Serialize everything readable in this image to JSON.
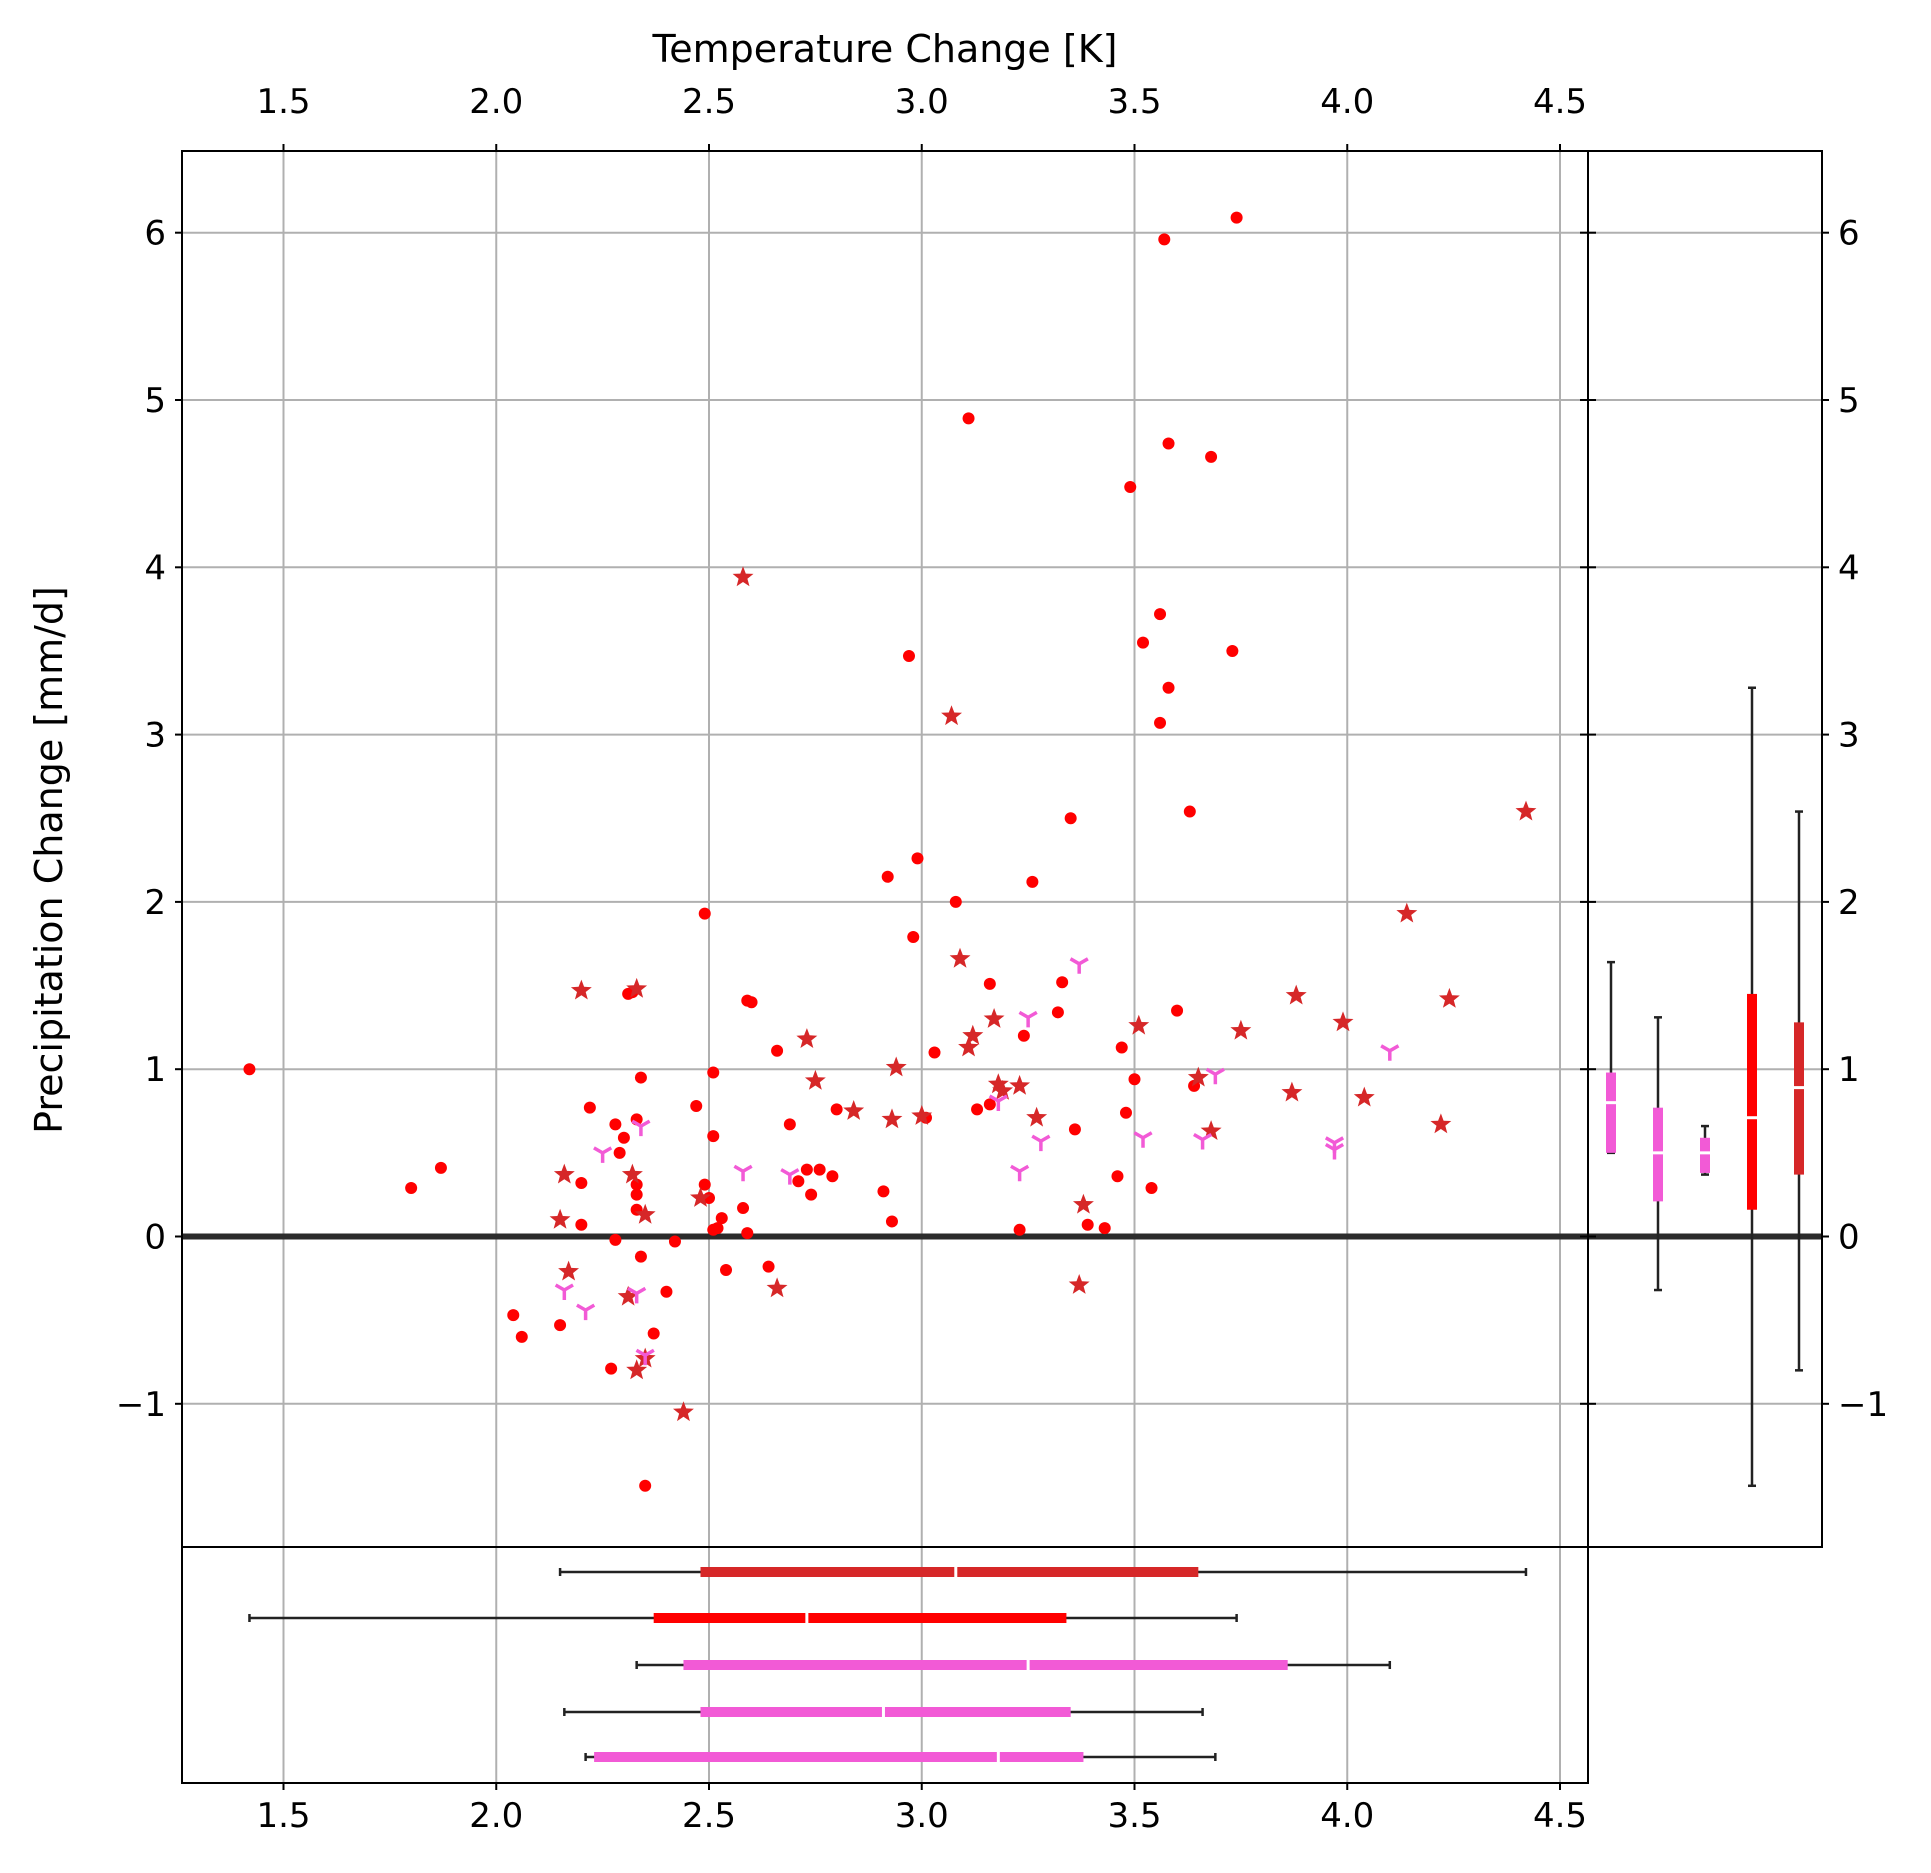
{
  "chart_data": {
    "type": "scatter",
    "xlabel": "Temperature Change [K]",
    "ylabel": "Precipitation Change [mm/d]",
    "xlim": [
      1.26,
      4.57
    ],
    "ylim": [
      -1.86,
      6.49
    ],
    "xticks": [
      "1.5",
      "2.0",
      "2.5",
      "3.0",
      "3.5",
      "4.0",
      "4.5"
    ],
    "xtick_values": [
      1.5,
      2.0,
      2.5,
      3.0,
      3.5,
      4.0,
      4.5
    ],
    "yticks": [
      "−1",
      "0",
      "1",
      "2",
      "3",
      "4",
      "5",
      "6"
    ],
    "ytick_values": [
      -1,
      0,
      1,
      2,
      3,
      4,
      5,
      6
    ],
    "grid": true,
    "colors": {
      "dots": "#ff0000",
      "stars": "#d62728",
      "tri": "#f25ad6",
      "zero": "#2b2b2b",
      "grid": "#b0b0b0"
    },
    "series": [
      {
        "name": "dots",
        "marker": "circle",
        "color": "#ff0000",
        "points": [
          [
            1.42,
            1.0
          ],
          [
            1.8,
            0.29
          ],
          [
            1.87,
            0.41
          ],
          [
            2.04,
            -0.47
          ],
          [
            2.06,
            -0.6
          ],
          [
            2.15,
            -0.53
          ],
          [
            2.2,
            0.32
          ],
          [
            2.2,
            0.07
          ],
          [
            2.22,
            0.77
          ],
          [
            2.27,
            -0.79
          ],
          [
            2.28,
            0.67
          ],
          [
            2.28,
            -0.02
          ],
          [
            2.29,
            0.5
          ],
          [
            2.3,
            0.59
          ],
          [
            2.31,
            1.45
          ],
          [
            2.32,
            1.46
          ],
          [
            2.33,
            0.7
          ],
          [
            2.33,
            0.25
          ],
          [
            2.33,
            0.16
          ],
          [
            2.33,
            0.31
          ],
          [
            2.34,
            0.95
          ],
          [
            2.34,
            -0.12
          ],
          [
            2.35,
            -1.49
          ],
          [
            2.37,
            -0.58
          ],
          [
            2.4,
            -0.33
          ],
          [
            2.42,
            -0.03
          ],
          [
            2.47,
            0.78
          ],
          [
            2.49,
            1.93
          ],
          [
            2.49,
            0.31
          ],
          [
            2.5,
            0.23
          ],
          [
            2.51,
            0.04
          ],
          [
            2.51,
            0.98
          ],
          [
            2.51,
            0.6
          ],
          [
            2.52,
            0.05
          ],
          [
            2.53,
            0.11
          ],
          [
            2.54,
            -0.2
          ],
          [
            2.58,
            0.17
          ],
          [
            2.59,
            1.41
          ],
          [
            2.6,
            1.4
          ],
          [
            2.59,
            0.02
          ],
          [
            2.64,
            -0.18
          ],
          [
            2.66,
            1.11
          ],
          [
            2.69,
            0.67
          ],
          [
            2.71,
            0.33
          ],
          [
            2.73,
            0.4
          ],
          [
            2.74,
            0.25
          ],
          [
            2.76,
            0.4
          ],
          [
            2.79,
            0.36
          ],
          [
            2.8,
            0.76
          ],
          [
            2.91,
            0.27
          ],
          [
            2.92,
            2.15
          ],
          [
            2.93,
            0.09
          ],
          [
            2.97,
            3.47
          ],
          [
            2.98,
            1.79
          ],
          [
            2.99,
            2.26
          ],
          [
            3.01,
            0.71
          ],
          [
            3.03,
            1.1
          ],
          [
            3.08,
            2.0
          ],
          [
            3.11,
            4.89
          ],
          [
            3.13,
            0.76
          ],
          [
            3.16,
            0.79
          ],
          [
            3.16,
            1.51
          ],
          [
            3.23,
            0.04
          ],
          [
            3.24,
            1.2
          ],
          [
            3.26,
            2.12
          ],
          [
            3.32,
            1.34
          ],
          [
            3.33,
            1.52
          ],
          [
            3.35,
            2.5
          ],
          [
            3.36,
            0.64
          ],
          [
            3.39,
            0.07
          ],
          [
            3.43,
            0.05
          ],
          [
            3.46,
            0.36
          ],
          [
            3.47,
            1.13
          ],
          [
            3.48,
            0.74
          ],
          [
            3.49,
            4.48
          ],
          [
            3.5,
            0.94
          ],
          [
            3.52,
            3.55
          ],
          [
            3.54,
            0.29
          ],
          [
            3.56,
            3.72
          ],
          [
            3.56,
            3.07
          ],
          [
            3.57,
            5.96
          ],
          [
            3.58,
            4.74
          ],
          [
            3.58,
            3.28
          ],
          [
            3.6,
            1.35
          ],
          [
            3.63,
            2.54
          ],
          [
            3.64,
            0.9
          ],
          [
            3.68,
            4.66
          ],
          [
            3.73,
            3.5
          ],
          [
            3.74,
            6.09
          ]
        ]
      },
      {
        "name": "stars",
        "marker": "star",
        "color": "#d62728",
        "points": [
          [
            2.15,
            0.1
          ],
          [
            2.16,
            0.37
          ],
          [
            2.17,
            -0.21
          ],
          [
            2.2,
            1.47
          ],
          [
            2.31,
            -0.36
          ],
          [
            2.32,
            0.37
          ],
          [
            2.33,
            1.48
          ],
          [
            2.33,
            -0.8
          ],
          [
            2.35,
            -0.73
          ],
          [
            2.35,
            0.13
          ],
          [
            2.44,
            -1.05
          ],
          [
            2.48,
            0.23
          ],
          [
            2.58,
            3.94
          ],
          [
            2.66,
            -0.31
          ],
          [
            2.73,
            1.18
          ],
          [
            2.75,
            0.93
          ],
          [
            2.84,
            0.75
          ],
          [
            2.93,
            0.7
          ],
          [
            2.94,
            1.01
          ],
          [
            3.0,
            0.72
          ],
          [
            3.07,
            3.11
          ],
          [
            3.09,
            1.66
          ],
          [
            3.11,
            1.13
          ],
          [
            3.12,
            1.2
          ],
          [
            3.17,
            1.3
          ],
          [
            3.18,
            0.91
          ],
          [
            3.19,
            0.87
          ],
          [
            3.23,
            0.9
          ],
          [
            3.27,
            0.71
          ],
          [
            3.37,
            -0.29
          ],
          [
            3.38,
            0.19
          ],
          [
            3.51,
            1.26
          ],
          [
            3.65,
            0.95
          ],
          [
            3.68,
            0.63
          ],
          [
            3.75,
            1.23
          ],
          [
            3.87,
            0.86
          ],
          [
            3.88,
            1.44
          ],
          [
            3.99,
            1.28
          ],
          [
            4.04,
            0.83
          ],
          [
            4.14,
            1.93
          ],
          [
            4.22,
            0.67
          ],
          [
            4.24,
            1.42
          ],
          [
            4.42,
            2.54
          ]
        ]
      },
      {
        "name": "tri",
        "marker": "tri_down",
        "color": "#f25ad6",
        "points": [
          [
            2.16,
            -0.32
          ],
          [
            2.21,
            -0.44
          ],
          [
            2.25,
            0.5
          ],
          [
            2.33,
            -0.34
          ],
          [
            2.34,
            0.66
          ],
          [
            2.35,
            -0.71
          ],
          [
            2.58,
            0.39
          ],
          [
            2.69,
            0.37
          ],
          [
            3.18,
            0.81
          ],
          [
            3.23,
            0.39
          ],
          [
            3.25,
            1.31
          ],
          [
            3.28,
            0.57
          ],
          [
            3.37,
            1.63
          ],
          [
            3.52,
            0.59
          ],
          [
            3.66,
            0.58
          ],
          [
            3.69,
            0.97
          ],
          [
            3.97,
            0.56
          ],
          [
            3.97,
            0.52
          ],
          [
            4.1,
            1.11
          ]
        ]
      }
    ],
    "x_boxplots": [
      {
        "color": "#d62728",
        "whisker": [
          2.15,
          4.42
        ],
        "box": [
          2.48,
          3.65
        ],
        "median": 3.08
      },
      {
        "color": "#ff0000",
        "whisker": [
          1.42,
          3.74
        ],
        "box": [
          2.37,
          3.34
        ],
        "median": 2.73
      },
      {
        "color": "#f25ad6",
        "whisker": [
          2.33,
          4.1
        ],
        "box": [
          2.44,
          3.86
        ],
        "median": 3.25
      },
      {
        "color": "#f25ad6",
        "whisker": [
          2.16,
          3.66
        ],
        "box": [
          2.48,
          3.35
        ],
        "median": 2.91
      },
      {
        "color": "#f25ad6",
        "whisker": [
          2.21,
          3.69
        ],
        "box": [
          2.23,
          3.38
        ],
        "median": 3.18
      }
    ],
    "y_boxplots": [
      {
        "color": "#f25ad6",
        "whisker": [
          0.5,
          1.64
        ],
        "box": [
          0.5,
          0.98
        ],
        "median": 0.8
      },
      {
        "color": "#f25ad6",
        "whisker": [
          -0.32,
          1.31
        ],
        "box": [
          0.21,
          0.77
        ],
        "median": 0.5
      },
      {
        "color": "#f25ad6",
        "whisker": [
          0.37,
          0.66
        ],
        "box": [
          0.38,
          0.59
        ],
        "median": 0.5
      },
      {
        "color": "#ff0000",
        "whisker": [
          -1.49,
          3.28
        ],
        "box": [
          0.16,
          1.45
        ],
        "median": 0.71
      },
      {
        "color": "#d62728",
        "whisker": [
          -0.8,
          2.54
        ],
        "box": [
          0.37,
          1.28
        ],
        "median": 0.89
      }
    ]
  }
}
